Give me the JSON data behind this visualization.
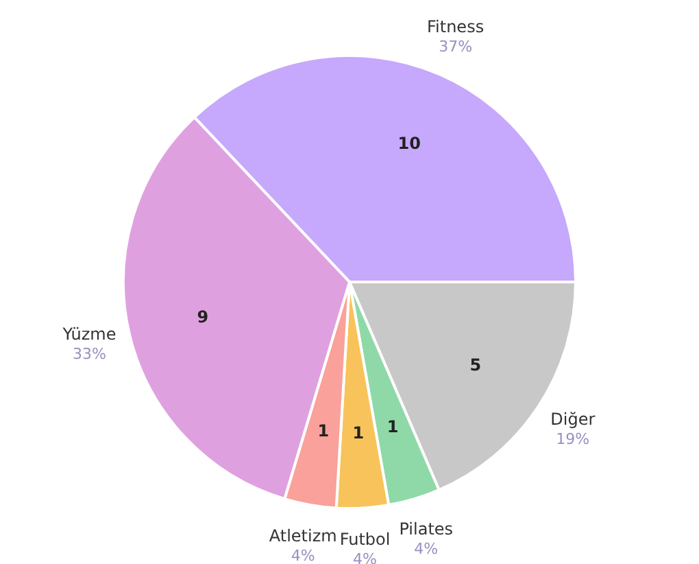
{
  "chart_data": {
    "type": "pie",
    "categories": [
      "Fitness",
      "Diğer",
      "Pilates",
      "Futbol",
      "Atletizm",
      "Yüzme"
    ],
    "values": [
      10,
      5,
      1,
      1,
      1,
      9
    ],
    "colors": [
      "#c6a8fc",
      "#c8c8c8",
      "#8fd9a8",
      "#f8c35a",
      "#f9a19a",
      "#dfa0e0"
    ],
    "data_labels": true,
    "annotations": [
      "37%",
      "19%",
      "4%",
      "4%",
      "4%",
      "33%"
    ]
  }
}
